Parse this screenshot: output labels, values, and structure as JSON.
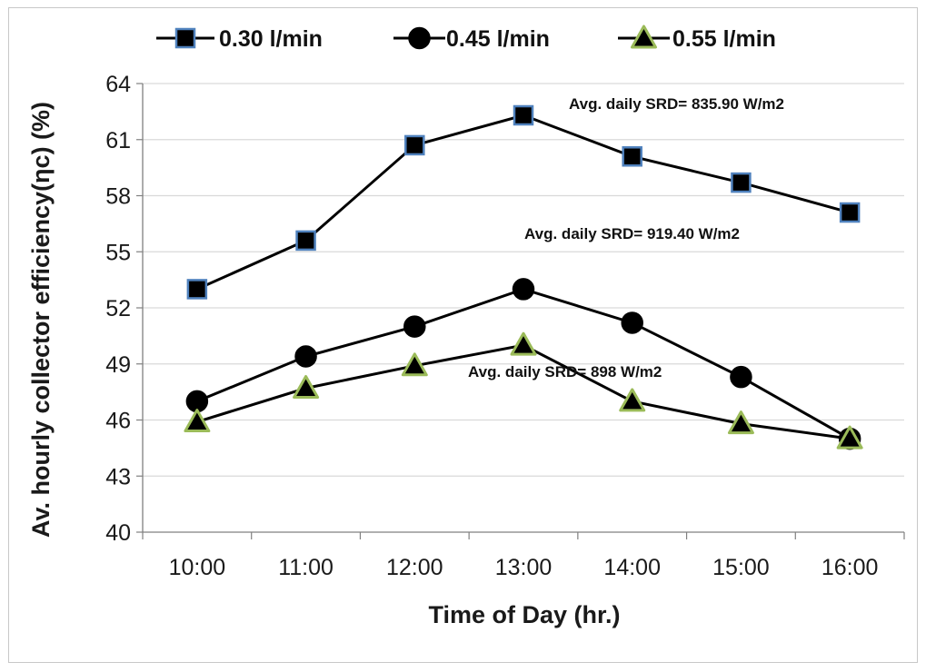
{
  "chart_data": {
    "type": "line",
    "title": "",
    "xlabel": "Time of Day (hr.)",
    "ylabel": "Av. hourly collector efficiency(ηc) (%)",
    "categories": [
      "10:00",
      "11:00",
      "12:00",
      "13:00",
      "14:00",
      "15:00",
      "16:00"
    ],
    "yticks": [
      "40",
      "43",
      "46",
      "49",
      "52",
      "55",
      "58",
      "61",
      "64"
    ],
    "ylim": [
      40,
      64
    ],
    "grid": "horizontal",
    "legend_position": "top",
    "series": [
      {
        "name": "0.30 l/min",
        "marker": "square",
        "marker_fill": "#000000",
        "marker_stroke": "#4f81bd",
        "values": [
          53.0,
          55.6,
          60.7,
          62.3,
          60.1,
          58.7,
          57.1
        ]
      },
      {
        "name": "0.45 l/min",
        "marker": "circle",
        "marker_fill": "#000000",
        "marker_stroke": "#000000",
        "values": [
          47.0,
          49.4,
          51.0,
          53.0,
          51.2,
          48.3,
          45.0
        ]
      },
      {
        "name": "0.55 l/min",
        "marker": "triangle",
        "marker_fill": "#000000",
        "marker_stroke": "#9bbb59",
        "values": [
          45.9,
          47.7,
          48.9,
          50.0,
          47.0,
          45.8,
          45.0
        ]
      }
    ],
    "annotations": [
      {
        "text": "Avg. daily SRD=   835.90 W/m2",
        "series": "0.30 l/min"
      },
      {
        "text": "Avg. daily SRD= 919.40 W/m2",
        "series": "0.45 l/min"
      },
      {
        "text": "Avg. daily SRD= 898  W/m2",
        "series": "0.55 l/min"
      }
    ],
    "colors": {
      "line": "#000000",
      "grid": "#d9d9d9",
      "axis": "#808080"
    }
  }
}
